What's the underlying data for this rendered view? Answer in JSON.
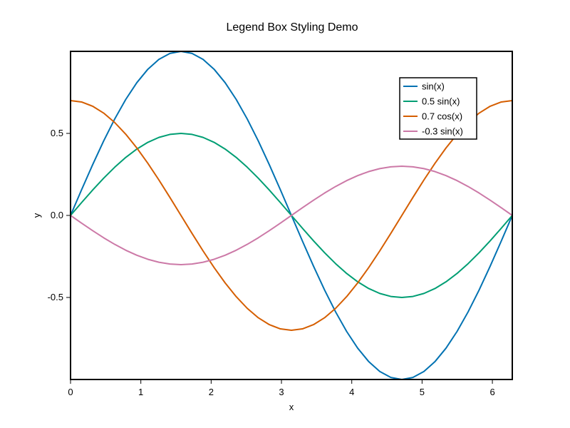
{
  "chart_data": {
    "type": "line",
    "title": "Legend Box Styling Demo",
    "xlabel": "x",
    "ylabel": "y",
    "xlim": [
      0,
      6.283185307179586
    ],
    "ylim": [
      -1,
      1
    ],
    "x_ticks": [
      "0",
      "1",
      "2",
      "3",
      "4",
      "5",
      "6"
    ],
    "y_ticks": [
      "-0.5",
      "0.0",
      "0.5"
    ],
    "grid": false,
    "legend_position": "top-right",
    "x": [
      0.0,
      0.1571,
      0.3142,
      0.4712,
      0.6283,
      0.7854,
      0.9425,
      1.0996,
      1.2566,
      1.4137,
      1.5708,
      1.7279,
      1.885,
      2.042,
      2.1991,
      2.3562,
      2.5133,
      2.6704,
      2.8274,
      2.9845,
      3.1416,
      3.2987,
      3.4558,
      3.6128,
      3.7699,
      3.927,
      4.0841,
      4.2412,
      4.3982,
      4.5553,
      4.7124,
      4.8695,
      5.0265,
      5.1836,
      5.3407,
      5.4978,
      5.6549,
      5.8119,
      5.969,
      6.1261,
      6.2832
    ],
    "series": [
      {
        "name": "sin(x)",
        "color": "#0072B2",
        "values": [
          0.0,
          0.1564,
          0.309,
          0.454,
          0.5878,
          0.7071,
          0.809,
          0.891,
          0.9511,
          0.9877,
          1.0,
          0.9877,
          0.9511,
          0.891,
          0.809,
          0.7071,
          0.5878,
          0.454,
          0.309,
          0.1564,
          0.0,
          -0.1564,
          -0.309,
          -0.454,
          -0.5878,
          -0.7071,
          -0.809,
          -0.891,
          -0.9511,
          -0.9877,
          -1.0,
          -0.9877,
          -0.9511,
          -0.891,
          -0.809,
          -0.7071,
          -0.5878,
          -0.454,
          -0.309,
          -0.1564,
          0.0
        ]
      },
      {
        "name": "0.5 sin(x)",
        "color": "#009E73",
        "values": [
          0.0,
          0.0782,
          0.1545,
          0.227,
          0.2939,
          0.3536,
          0.4045,
          0.4455,
          0.4755,
          0.4938,
          0.5,
          0.4938,
          0.4755,
          0.4455,
          0.4045,
          0.3536,
          0.2939,
          0.227,
          0.1545,
          0.0782,
          0.0,
          -0.0782,
          -0.1545,
          -0.227,
          -0.2939,
          -0.3536,
          -0.4045,
          -0.4455,
          -0.4755,
          -0.4938,
          -0.5,
          -0.4938,
          -0.4755,
          -0.4455,
          -0.4045,
          -0.3536,
          -0.2939,
          -0.227,
          -0.1545,
          -0.0782,
          0.0
        ]
      },
      {
        "name": "0.7 cos(x)",
        "color": "#D55E00",
        "values": [
          0.7,
          0.6914,
          0.6657,
          0.6237,
          0.5663,
          0.495,
          0.4114,
          0.3178,
          0.2163,
          0.1095,
          0.0,
          -0.1095,
          -0.2163,
          -0.3178,
          -0.4114,
          -0.495,
          -0.5663,
          -0.6237,
          -0.6657,
          -0.6914,
          -0.7,
          -0.6914,
          -0.6657,
          -0.6237,
          -0.5663,
          -0.495,
          -0.4114,
          -0.3178,
          -0.2163,
          -0.1095,
          0.0,
          0.1095,
          0.2163,
          0.3178,
          0.4114,
          0.495,
          0.5663,
          0.6237,
          0.6657,
          0.6914,
          0.7
        ]
      },
      {
        "name": "-0.3 sin(x)",
        "color": "#CC79A7",
        "values": [
          0.0,
          -0.0469,
          -0.0927,
          -0.1362,
          -0.1763,
          -0.2121,
          -0.2427,
          -0.2673,
          -0.2853,
          -0.2963,
          -0.3,
          -0.2963,
          -0.2853,
          -0.2673,
          -0.2427,
          -0.2121,
          -0.1763,
          -0.1362,
          -0.0927,
          -0.0469,
          0.0,
          0.0469,
          0.0927,
          0.1362,
          0.1763,
          0.2121,
          0.2427,
          0.2673,
          0.2853,
          0.2963,
          0.3,
          0.2963,
          0.2853,
          0.2673,
          0.2427,
          0.2121,
          0.1763,
          0.1362,
          0.0927,
          0.0469,
          0.0
        ]
      }
    ]
  }
}
